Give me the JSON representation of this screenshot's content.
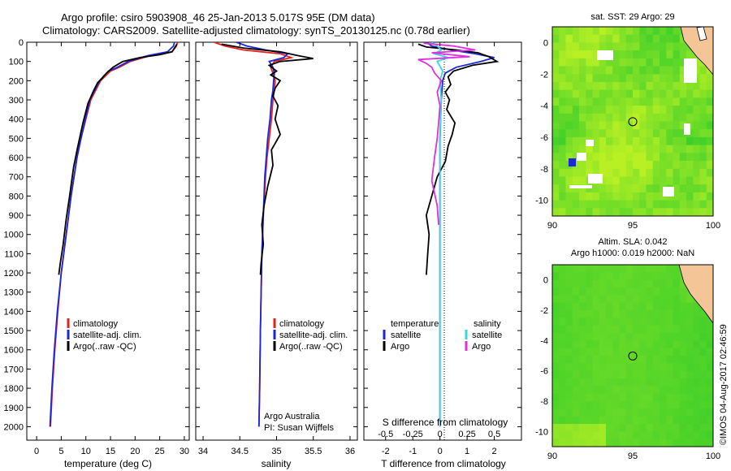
{
  "header": {
    "title_line1": "Argo profile: csiro 5903908_46 25-Jan-2013 5.017S 95E (DM data)",
    "title_line2": "Climatology: CARS2009. Satellite-adjusted climatology: synTS_20130125.nc (0.78d earlier)"
  },
  "colors": {
    "climatology": "#e8201c",
    "satellite": "#1c28d8",
    "argo": "#000000",
    "sat_salinity": "#36d8e0",
    "argo_salinity": "#e030e0",
    "map_green": "#3fcf2a",
    "map_yellow": "#b9f024",
    "land": "#f4c596"
  },
  "annotations": {
    "credit_line1": "Argo Australia",
    "credit_line2": "PI: Susan Wijffels",
    "imos_stamp": "©IMOS 04-Aug-2017 02:46:59"
  },
  "chart_data": [
    {
      "type": "line",
      "panel": "temperature",
      "xlabel": "temperature (deg C)",
      "ylabel": "",
      "xlim": [
        -2,
        31
      ],
      "ylim": [
        2070,
        0
      ],
      "xticks": [
        "0",
        "5",
        "10",
        "15",
        "20",
        "25",
        "30"
      ],
      "xtick_values": [
        0,
        5,
        10,
        15,
        20,
        25,
        30
      ],
      "yticks": [
        "0",
        "100",
        "200",
        "300",
        "400",
        "500",
        "600",
        "700",
        "800",
        "900",
        "1000",
        "1100",
        "1200",
        "1300",
        "1400",
        "1500",
        "1600",
        "1700",
        "1800",
        "1900",
        "2000"
      ],
      "ytick_values": [
        0,
        100,
        200,
        300,
        400,
        500,
        600,
        700,
        800,
        900,
        1000,
        1100,
        1200,
        1300,
        1400,
        1500,
        1600,
        1700,
        1800,
        1900,
        2000
      ],
      "legend": [
        "climatology",
        "satellite-adj. clim.",
        "Argo(..raw -QC)"
      ],
      "series": [
        {
          "name": "climatology",
          "x": [
            28.6,
            28.4,
            27.5,
            23.0,
            19.0,
            16.8,
            15.0,
            13.8,
            13.0,
            12.0,
            11.0,
            10.0,
            9.0,
            8.2,
            7.0,
            6.0,
            5.0,
            4.3,
            3.7,
            3.2,
            3.0,
            2.8
          ],
          "y": [
            0,
            20,
            50,
            70,
            100,
            130,
            150,
            180,
            200,
            250,
            300,
            400,
            500,
            600,
            800,
            1000,
            1200,
            1400,
            1600,
            1800,
            1900,
            2000
          ]
        },
        {
          "name": "satellite",
          "x": [
            28.0,
            27.8,
            26.6,
            22.5,
            18.6,
            16.4,
            14.6,
            13.5,
            12.8,
            11.8,
            10.8,
            9.9,
            9.0,
            8.2,
            7.0,
            6.0,
            5.0,
            4.2,
            3.6,
            3.1,
            2.9,
            2.7
          ],
          "y": [
            0,
            20,
            50,
            70,
            100,
            130,
            150,
            180,
            200,
            250,
            300,
            400,
            500,
            600,
            800,
            1000,
            1200,
            1400,
            1600,
            1800,
            1900,
            2000
          ]
        },
        {
          "name": "Argo",
          "x": [
            28.5,
            27.5,
            25.0,
            21.0,
            17.5,
            15.5,
            14.2,
            13.2,
            12.4,
            11.6,
            10.4,
            9.4,
            8.3,
            7.5,
            6.7,
            6.0,
            5.4,
            4.8,
            4.5
          ],
          "y": [
            10,
            50,
            65,
            80,
            100,
            130,
            160,
            190,
            210,
            250,
            320,
            420,
            550,
            650,
            800,
            920,
            1050,
            1150,
            1210
          ]
        }
      ]
    },
    {
      "type": "line",
      "panel": "salinity",
      "xlabel": "salinity",
      "xlim": [
        33.9,
        36.1
      ],
      "ylim": [
        2070,
        0
      ],
      "xticks": [
        "34",
        "34.5",
        "35",
        "35.5",
        "36"
      ],
      "xtick_values": [
        34,
        34.5,
        35,
        35.5,
        36
      ],
      "legend": [
        "climatology",
        "satellite-adj. clim.",
        "Argo(..raw -QC)"
      ],
      "series": [
        {
          "name": "climatology",
          "x": [
            34.15,
            34.3,
            34.55,
            35.05,
            35.2,
            34.97,
            34.92,
            34.95,
            34.98,
            34.97,
            34.95,
            34.93,
            34.9,
            34.87,
            34.85,
            34.82,
            34.8,
            34.79,
            34.78,
            34.77,
            34.76
          ],
          "y": [
            0,
            20,
            40,
            60,
            80,
            100,
            130,
            160,
            200,
            250,
            300,
            400,
            500,
            600,
            700,
            900,
            1100,
            1300,
            1500,
            1800,
            2000
          ]
        },
        {
          "name": "satellite",
          "x": [
            34.45,
            34.6,
            34.85,
            35.15,
            35.1,
            34.9,
            34.95,
            34.97,
            34.96,
            34.95,
            34.93,
            34.91,
            34.88,
            34.86,
            34.84,
            34.82,
            34.8,
            34.79,
            34.78,
            34.77,
            34.76
          ],
          "y": [
            0,
            20,
            40,
            60,
            80,
            100,
            130,
            160,
            200,
            250,
            300,
            400,
            500,
            600,
            700,
            900,
            1100,
            1300,
            1500,
            1800,
            2000
          ]
        },
        {
          "name": "Argo",
          "x": [
            34.25,
            34.55,
            35.05,
            35.3,
            35.5,
            35.05,
            34.9,
            35.0,
            34.92,
            35.05,
            34.98,
            34.95,
            35.02,
            34.98,
            35.05,
            34.93,
            34.95,
            34.88,
            34.83,
            34.8,
            34.82,
            34.79,
            34.78
          ],
          "y": [
            10,
            30,
            50,
            70,
            85,
            100,
            120,
            150,
            170,
            200,
            240,
            280,
            330,
            400,
            480,
            560,
            640,
            750,
            850,
            950,
            1050,
            1150,
            1210
          ]
        }
      ]
    },
    {
      "type": "line",
      "panel": "difference",
      "xlabel": "T difference from climatology",
      "xlabel_top": "S difference from climatology",
      "xlim": [
        -2.8,
        3.0
      ],
      "ylim": [
        2070,
        0
      ],
      "xticks": [
        "-2",
        "-1",
        "0",
        "1",
        "2"
      ],
      "xtick_values": [
        -2,
        -1,
        0,
        1,
        2
      ],
      "xticks_top": [
        "-0.5",
        "-0.25",
        "0",
        "0.25",
        "0.5"
      ],
      "xtick_top_values": [
        -2,
        -1,
        0,
        1,
        2
      ],
      "legend_headers": [
        "temperature",
        "salinity"
      ],
      "legend": [
        "satellite",
        "Argo",
        "satellite",
        "Argo"
      ],
      "series": [
        {
          "name": "temperature satellite",
          "x": [
            -0.5,
            -0.3,
            0.4,
            1.3,
            2.0,
            1.5,
            0.6,
            0.2,
            0.1,
            0.05,
            0.0,
            0.0,
            0.0,
            0.0,
            0.0,
            0.0
          ],
          "y": [
            0,
            20,
            40,
            60,
            80,
            100,
            130,
            160,
            200,
            300,
            500,
            800,
            1100,
            1400,
            1700,
            2000
          ]
        },
        {
          "name": "temperature Argo",
          "x": [
            -0.8,
            -0.5,
            0.6,
            1.4,
            1.8,
            2.1,
            1.2,
            0.5,
            0.3,
            0.4,
            0.2,
            0.35,
            0.25,
            0.55,
            0.45,
            0.3,
            0.2,
            -0.1,
            -0.3,
            -0.5,
            -0.4,
            -0.45,
            -0.5
          ],
          "y": [
            10,
            25,
            40,
            55,
            75,
            100,
            120,
            150,
            180,
            220,
            260,
            300,
            350,
            420,
            480,
            540,
            620,
            700,
            800,
            900,
            1000,
            1100,
            1210
          ]
        },
        {
          "name": "salinity satellite",
          "x": [
            -0.3,
            -0.1,
            0.05,
            -0.2,
            0.3,
            -0.1,
            0.1,
            0.0,
            0.05,
            0.0,
            0.0,
            0.0,
            0.0,
            0.0,
            0.0
          ],
          "y": [
            0,
            20,
            40,
            60,
            80,
            100,
            150,
            200,
            300,
            500,
            800,
            1100,
            1400,
            1700,
            2000
          ]
        },
        {
          "name": "salinity Argo",
          "x": [
            -0.6,
            0.5,
            1.3,
            -0.3,
            1.1,
            -0.8,
            -0.5,
            -0.3,
            -0.2,
            0.05,
            -0.1,
            0.0,
            -0.05,
            -0.1,
            -0.2,
            -0.3,
            -0.1,
            -0.05
          ],
          "y": [
            5,
            20,
            40,
            55,
            75,
            90,
            110,
            130,
            160,
            200,
            260,
            330,
            420,
            500,
            600,
            720,
            850,
            950
          ]
        }
      ]
    },
    {
      "type": "heatmap",
      "panel": "sst_map",
      "title": "sat. SST: 29 Argo: 29",
      "xlim": [
        90,
        100
      ],
      "ylim": [
        -11,
        1
      ],
      "xticks": [
        "90",
        "95",
        "100"
      ],
      "xtick_values": [
        90,
        95,
        100
      ],
      "yticks": [
        "0",
        "-2",
        "-4",
        "-6",
        "-8",
        "-10"
      ],
      "ytick_values": [
        0,
        -2,
        -4,
        -6,
        -8,
        -10
      ],
      "marker": {
        "lon": 95,
        "lat": -5.017
      }
    },
    {
      "type": "heatmap",
      "panel": "sla_map",
      "title_line1": "Altim. SLA: 0.042",
      "title_line2": "Argo h1000: 0.019 h2000: NaN",
      "xlim": [
        90,
        100
      ],
      "ylim": [
        -11,
        1
      ],
      "xticks": [
        "90",
        "95",
        "100"
      ],
      "xtick_values": [
        90,
        95,
        100
      ],
      "yticks": [
        "0",
        "-2",
        "-4",
        "-6",
        "-8",
        "-10"
      ],
      "ytick_values": [
        0,
        -2,
        -4,
        -6,
        -8,
        -10
      ],
      "marker": {
        "lon": 95,
        "lat": -5.017
      }
    }
  ]
}
